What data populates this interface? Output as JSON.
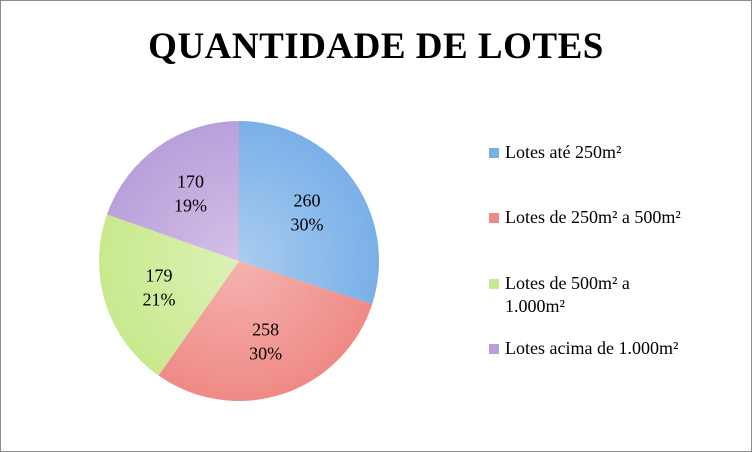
{
  "chart_data": {
    "type": "pie",
    "title": "QUANTIDADE DE LOTES",
    "categories": [
      "Lotes até 250m²",
      "Lotes de 250m² a 500m²",
      "Lotes de 500m² a 1.000m²",
      "Lotes acima de 1.000m²"
    ],
    "values": [
      260,
      258,
      179,
      170
    ],
    "percent_labels": [
      "30%",
      "30%",
      "21%",
      "19%"
    ],
    "colors": [
      "#7ab0e8",
      "#ef8a86",
      "#c9e98e",
      "#b9a0da"
    ],
    "legend_position": "right",
    "data_labels": "value and percentage"
  }
}
